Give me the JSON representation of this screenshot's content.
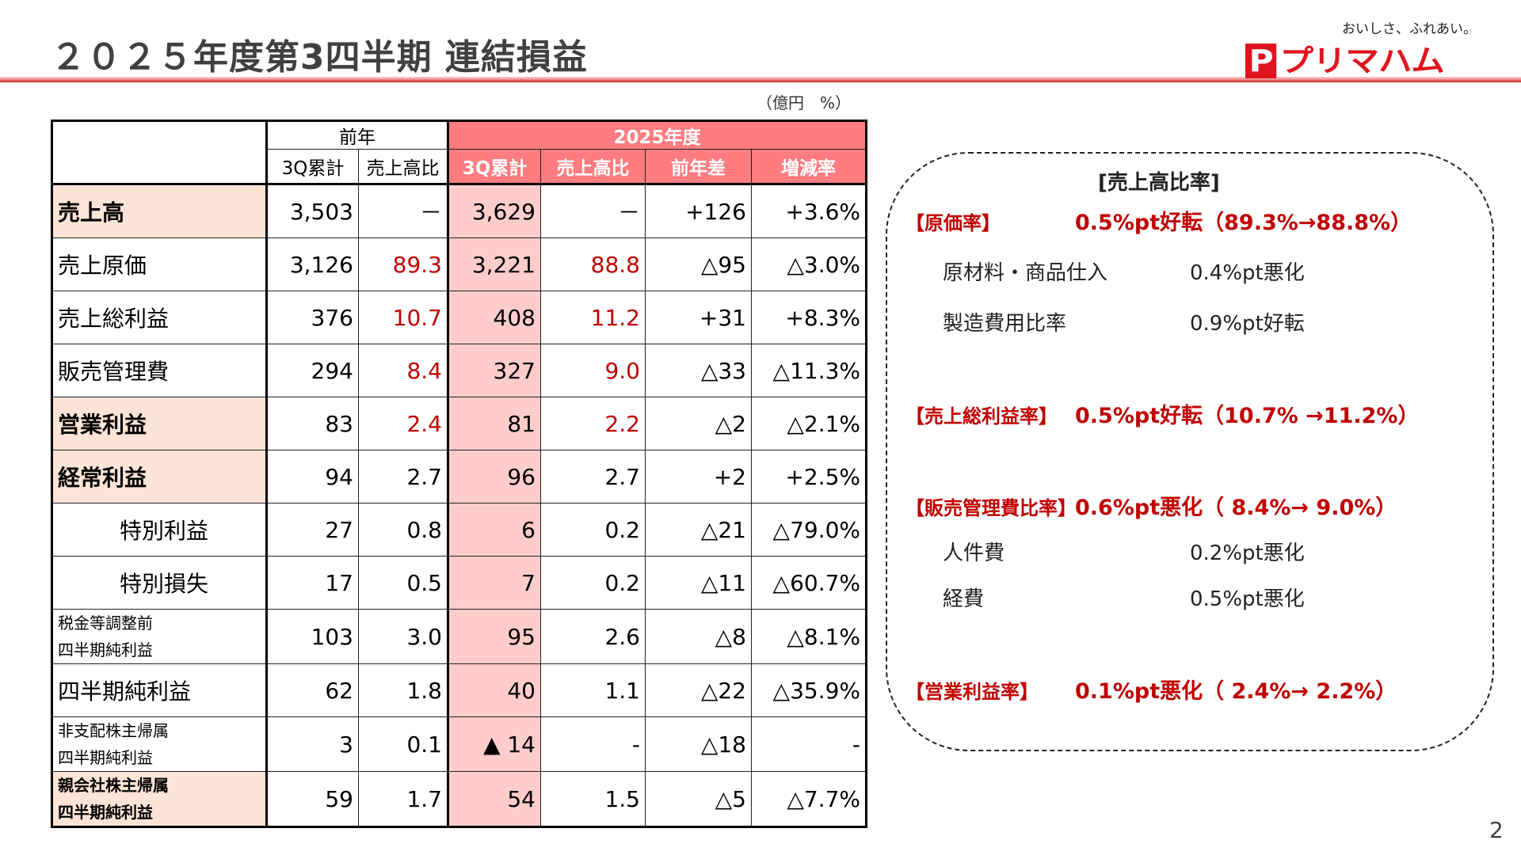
{
  "header": {
    "title": "２０２５年度第3四半期 連結損益",
    "logo": {
      "tagline": "おいしさ、ふれあい。",
      "brand": "プリマハム"
    }
  },
  "unit_label": "（億円　%）",
  "table": {
    "group_headers": {
      "prior": "前年",
      "current": "2025年度"
    },
    "columns": [
      "3Q累計",
      "売上高比",
      "3Q累計",
      "売上高比",
      "前年差",
      "増減率"
    ],
    "rows": [
      {
        "label": "売上高",
        "style": "key",
        "prev": "3,503",
        "prev_ratio": "－",
        "cur": "3,629",
        "cur_ratio": "－",
        "diff": "+126",
        "rate": "+3.6%",
        "ratio_red": false,
        "cur_bold": true
      },
      {
        "label": "売上原価",
        "style": "normal",
        "prev": "3,126",
        "prev_ratio": "89.3",
        "cur": "3,221",
        "cur_ratio": "88.8",
        "diff": "△95",
        "rate": "△3.0%",
        "ratio_red": true,
        "cur_bold": false
      },
      {
        "label": "売上総利益",
        "style": "normal",
        "prev": "376",
        "prev_ratio": "10.7",
        "cur": "408",
        "cur_ratio": "11.2",
        "diff": "+31",
        "rate": "+8.3%",
        "ratio_red": true,
        "cur_bold": false
      },
      {
        "label": "販売管理費",
        "style": "normal",
        "prev": "294",
        "prev_ratio": "8.4",
        "cur": "327",
        "cur_ratio": "9.0",
        "diff": "△33",
        "rate": "△11.3%",
        "ratio_red": true,
        "cur_bold": false
      },
      {
        "label": "営業利益",
        "style": "key",
        "prev": "83",
        "prev_ratio": "2.4",
        "cur": "81",
        "cur_ratio": "2.2",
        "diff": "△2",
        "rate": "△2.1%",
        "ratio_red": true,
        "cur_bold": true
      },
      {
        "label": "経常利益",
        "style": "key",
        "prev": "94",
        "prev_ratio": "2.7",
        "cur": "96",
        "cur_ratio": "2.7",
        "diff": "+2",
        "rate": "+2.5%",
        "ratio_red": false,
        "cur_bold": true
      },
      {
        "label": "特別利益",
        "style": "indent",
        "prev": "27",
        "prev_ratio": "0.8",
        "cur": "6",
        "cur_ratio": "0.2",
        "diff": "△21",
        "rate": "△79.0%",
        "ratio_red": false,
        "cur_bold": false
      },
      {
        "label": "特別損失",
        "style": "indent",
        "prev": "17",
        "prev_ratio": "0.5",
        "cur": "7",
        "cur_ratio": "0.2",
        "diff": "△11",
        "rate": "△60.7%",
        "ratio_red": false,
        "cur_bold": false
      },
      {
        "label": "税金等調整前",
        "label2": "四半期純利益",
        "style": "small",
        "prev": "103",
        "prev_ratio": "3.0",
        "cur": "95",
        "cur_ratio": "2.6",
        "diff": "△8",
        "rate": "△8.1%",
        "ratio_red": false,
        "cur_bold": false
      },
      {
        "label": "四半期純利益",
        "style": "normal",
        "prev": "62",
        "prev_ratio": "1.8",
        "cur": "40",
        "cur_ratio": "1.1",
        "diff": "△22",
        "rate": "△35.9%",
        "ratio_red": false,
        "cur_bold": false
      },
      {
        "label": "非支配株主帰属",
        "label2": "四半期純利益",
        "style": "small",
        "prev": "3",
        "prev_ratio": "0.1",
        "cur": "▲ 14",
        "cur_ratio": "-",
        "diff": "△18",
        "rate": "-",
        "ratio_red": false,
        "cur_bold": false
      },
      {
        "label": "親会社株主帰属",
        "label2": "四半期純利益",
        "style": "small-key",
        "prev": "59",
        "prev_ratio": "1.7",
        "cur": "54",
        "cur_ratio": "1.5",
        "diff": "△5",
        "rate": "△7.7%",
        "ratio_red": false,
        "cur_bold": true
      }
    ]
  },
  "ratio_panel": {
    "title": "[売上高比率]",
    "items": [
      {
        "label": "【原価率】",
        "value": "0.5%pt好転（89.3%→88.8%）",
        "subs": [
          {
            "label": "原材料・商品仕入",
            "value": "0.4%pt悪化"
          },
          {
            "label": "製造費用比率",
            "value": "0.9%pt好転"
          }
        ]
      },
      {
        "label": "【売上総利益率】",
        "value": "0.5%pt好転（10.7% →11.2%）",
        "subs": []
      },
      {
        "label": "【販売管理費比率】",
        "value": "0.6%pt悪化（ 8.4%→ 9.0%）",
        "subs": [
          {
            "label": "人件費",
            "value": "0.2%pt悪化"
          },
          {
            "label": "経費",
            "value": "0.5%pt悪化"
          }
        ]
      },
      {
        "label": "【営業利益率】",
        "value": "0.1%pt悪化（ 2.4%→ 2.2%）",
        "subs": []
      }
    ]
  },
  "colors": {
    "header_red": "#ff7c80",
    "current_col": "#ffcccc",
    "key_label": "#fde4d6",
    "accent_red": "#c00000",
    "title_gray": "#404040"
  },
  "page_number": "2"
}
